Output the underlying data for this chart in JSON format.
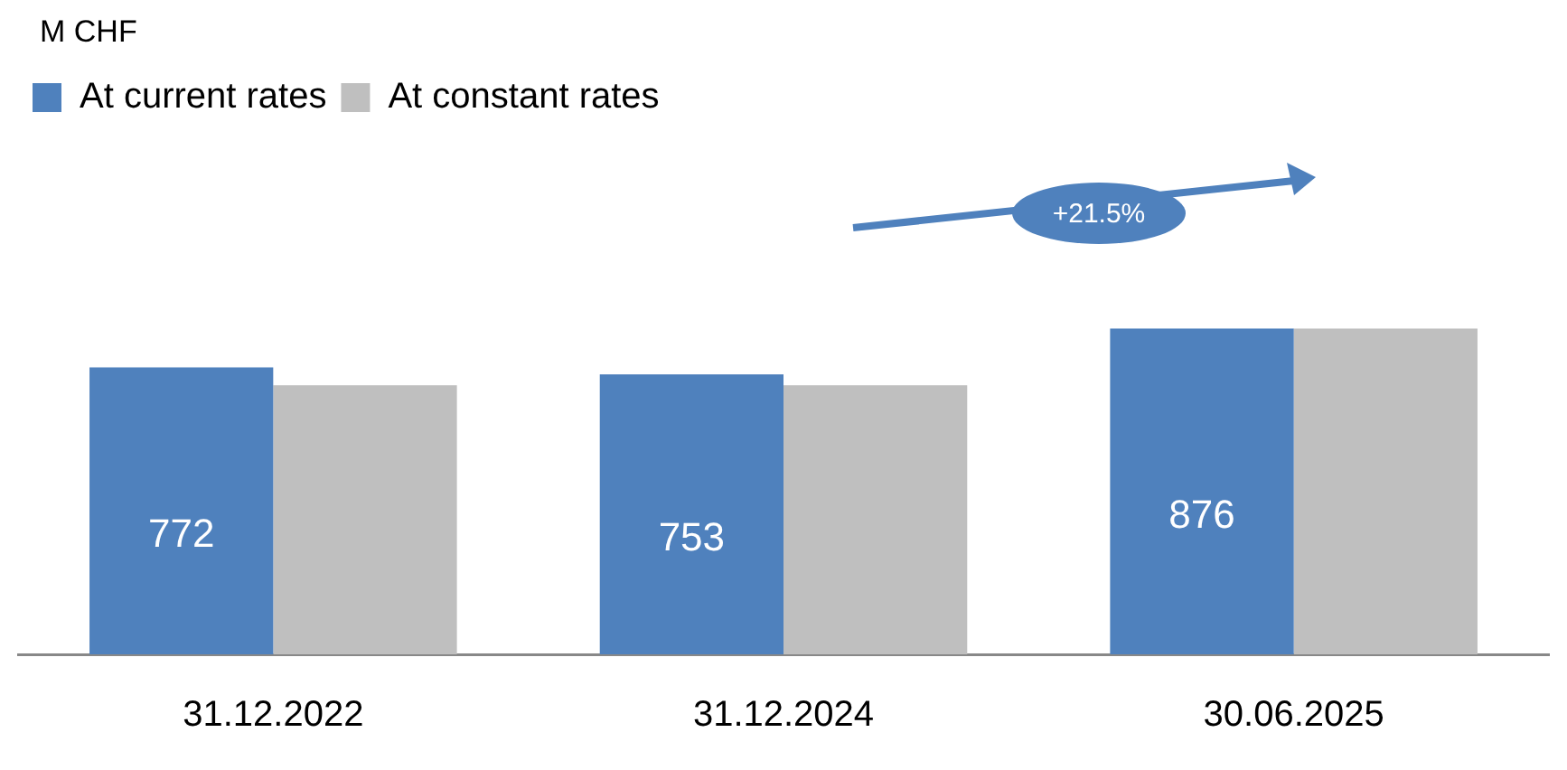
{
  "chart_data": {
    "type": "bar",
    "categories": [
      "31.12.2022",
      "31.12.2024",
      "30.06.2025"
    ],
    "legend": "top",
    "tick_labels": "x",
    "annotations": [
      "M CHF",
      "+21.5%"
    ],
    "series": [
      {
        "name": "At current rates",
        "color": "#4f81bd",
        "values": [
          772,
          753,
          876
        ],
        "value_labels": [
          "772",
          "753",
          "876"
        ]
      },
      {
        "name": "At constant rates",
        "color": "#bfbfbf",
        "values": [
          724,
          724,
          876
        ]
      }
    ]
  }
}
